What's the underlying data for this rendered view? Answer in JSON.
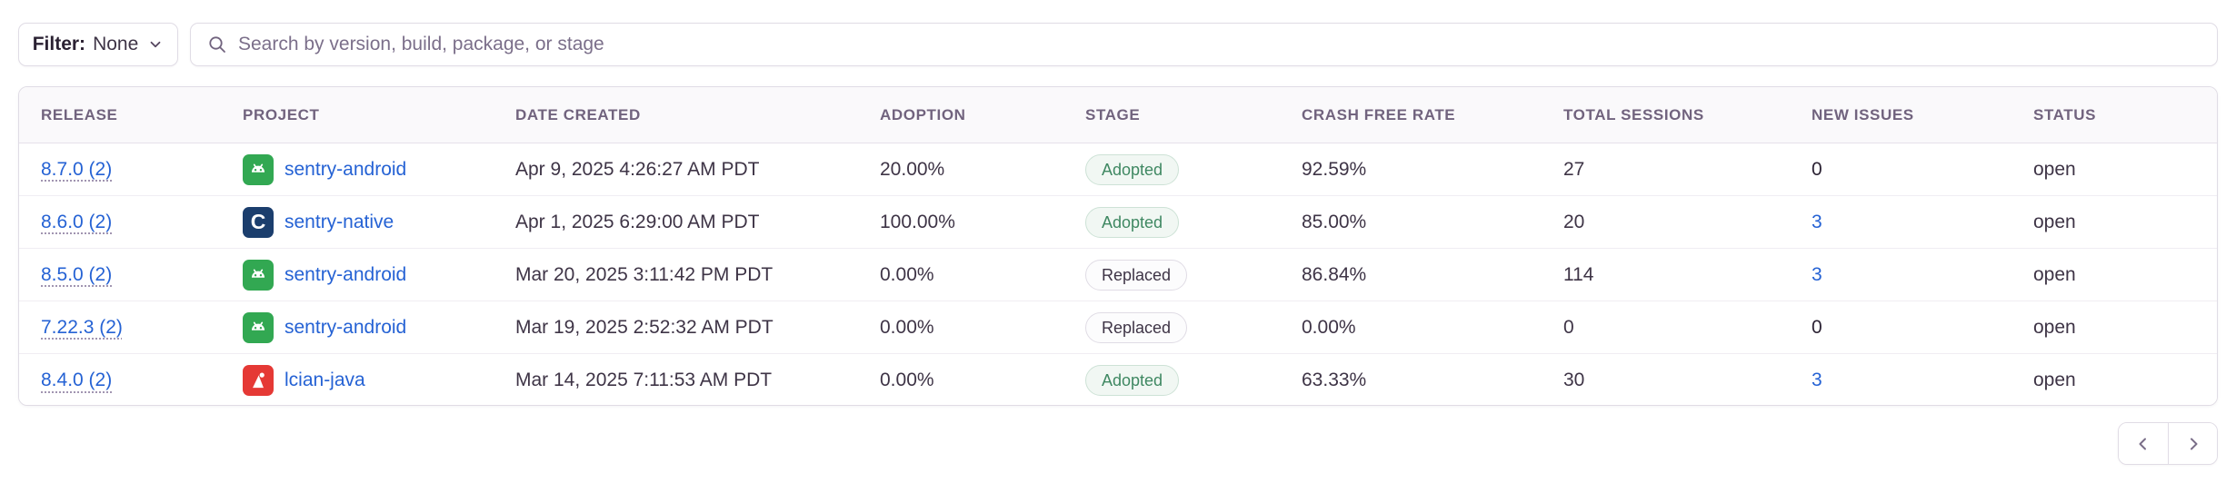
{
  "toolbar": {
    "filter": {
      "label": "Filter:",
      "value": "None"
    },
    "search": {
      "placeholder": "Search by version, build, package, or stage"
    }
  },
  "table": {
    "columns": [
      "Release",
      "Project",
      "Date Created",
      "Adoption",
      "Stage",
      "Crash Free Rate",
      "Total Sessions",
      "New Issues",
      "Status"
    ],
    "rows": [
      {
        "release": "8.7.0 (2)",
        "platform": "android",
        "platform_icon": "android-icon",
        "project": "sentry-android",
        "date_created": "Apr 9, 2025 4:26:27 AM PDT",
        "adoption": "20.00%",
        "stage": "Adopted",
        "crash_free_rate": "92.59%",
        "total_sessions": "27",
        "new_issues": "0",
        "new_issues_is_link": false,
        "status": "open"
      },
      {
        "release": "8.6.0 (2)",
        "platform": "c",
        "platform_icon": "c-language-icon",
        "project": "sentry-native",
        "date_created": "Apr 1, 2025 6:29:00 AM PDT",
        "adoption": "100.00%",
        "stage": "Adopted",
        "crash_free_rate": "85.00%",
        "total_sessions": "20",
        "new_issues": "3",
        "new_issues_is_link": true,
        "status": "open"
      },
      {
        "release": "8.5.0 (2)",
        "platform": "android",
        "platform_icon": "android-icon",
        "project": "sentry-android",
        "date_created": "Mar 20, 2025 3:11:42 PM PDT",
        "adoption": "0.00%",
        "stage": "Replaced",
        "crash_free_rate": "86.84%",
        "total_sessions": "114",
        "new_issues": "3",
        "new_issues_is_link": true,
        "status": "open"
      },
      {
        "release": "7.22.3 (2)",
        "platform": "android",
        "platform_icon": "android-icon",
        "project": "sentry-android",
        "date_created": "Mar 19, 2025 2:52:32 AM PDT",
        "adoption": "0.00%",
        "stage": "Replaced",
        "crash_free_rate": "0.00%",
        "total_sessions": "0",
        "new_issues": "0",
        "new_issues_is_link": false,
        "status": "open"
      },
      {
        "release": "8.4.0 (2)",
        "platform": "java",
        "platform_icon": "java-icon",
        "project": "lcian-java",
        "date_created": "Mar 14, 2025 7:11:53 AM PDT",
        "adoption": "0.00%",
        "stage": "Adopted",
        "crash_free_rate": "63.33%",
        "total_sessions": "30",
        "new_issues": "3",
        "new_issues_is_link": true,
        "status": "open"
      }
    ]
  },
  "pagination": {
    "prev_icon": "chevron-left-icon",
    "next_icon": "chevron-right-icon"
  },
  "colors": {
    "link_blue": "#2562d4",
    "adopted_green": "#3f8862",
    "android_green": "#32a852",
    "c_navy": "#1b3e6d",
    "java_red": "#e53935",
    "header_text": "#71637e",
    "cell_text": "#3e3446",
    "border": "#e0dce5"
  }
}
